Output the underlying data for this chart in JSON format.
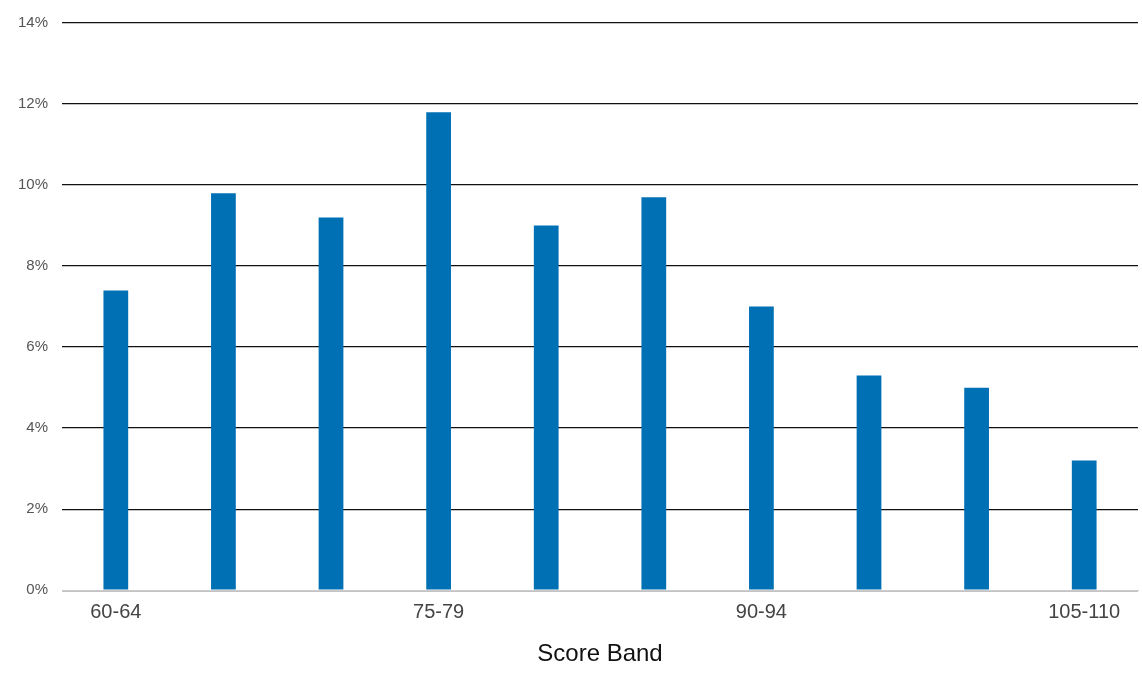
{
  "chart_data": {
    "type": "bar",
    "xlabel": "Score Band",
    "categories": [
      "60-64",
      null,
      null,
      "75-79",
      null,
      null,
      "90-94",
      null,
      null,
      "105-110"
    ],
    "values": [
      7.4,
      9.8,
      9.2,
      11.8,
      9.0,
      9.7,
      7.0,
      5.3,
      5.0,
      3.2
    ],
    "color": "#0070b5",
    "ylim": [
      0,
      14
    ],
    "yticks": [
      {
        "value": 0,
        "label": "0%"
      },
      {
        "value": 2,
        "label": "2%"
      },
      {
        "value": 4,
        "label": "4%"
      },
      {
        "value": 6,
        "label": "6%"
      },
      {
        "value": 8,
        "label": "8%"
      },
      {
        "value": 10,
        "label": "10%"
      },
      {
        "value": 12,
        "label": "12%"
      },
      {
        "value": 14,
        "label": "14%"
      }
    ],
    "grid": "y",
    "legend": false
  }
}
